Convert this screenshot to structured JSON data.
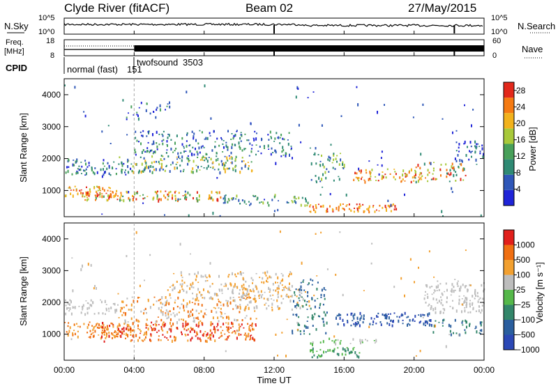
{
  "header": {
    "station": "Clyde River (fitACF)",
    "beam": "Beam 02",
    "date": "27/May/2015"
  },
  "noise_panel": {
    "left_label": "N.Sky",
    "right_label": "N.Search",
    "left_ticks": [
      "10^5",
      "10^0"
    ],
    "right_ticks": [
      "10^5",
      "10^0"
    ]
  },
  "freq_panel": {
    "left_label_1": "Freq.",
    "left_label_2": "[MHz]",
    "right_label": "Nave",
    "left_ticks": [
      "18",
      "8"
    ],
    "right_ticks": [
      "60",
      "0"
    ]
  },
  "cpid": {
    "label": "CPID",
    "segments": [
      {
        "name": "normal (fast)",
        "id": "151",
        "start_hour": 0
      },
      {
        "name": "twofsound",
        "id": "3503",
        "start_hour": 4
      }
    ]
  },
  "colors": {
    "power": [
      "#1f24d8",
      "#2f57b8",
      "#2f8a74",
      "#48a05a",
      "#a8c93a",
      "#f2b21c",
      "#f57a12",
      "#e2281b"
    ],
    "velocity": [
      "#2b48b5",
      "#2a5e9e",
      "#33866a",
      "#55b84a",
      "#bdbdbd",
      "#f2a030",
      "#f06f12",
      "#e11f1b"
    ]
  },
  "chart_data": [
    {
      "type": "heatmap",
      "name": "power",
      "ylabel": "Slant Range [km]",
      "x_range_hours": [
        0,
        24
      ],
      "ylim": [
        180,
        4500
      ],
      "yticks": [
        1000,
        2000,
        3000,
        4000
      ],
      "colorbar": {
        "title": "Power [dB]",
        "ticks": [
          "28",
          "24",
          "20",
          "16",
          "12",
          "8",
          "4"
        ],
        "range": [
          0,
          30
        ]
      }
    },
    {
      "type": "heatmap",
      "name": "velocity",
      "ylabel": "Slant Range [km]",
      "xlabel": "Time UT",
      "x_range_hours": [
        0,
        24
      ],
      "ylim": [
        180,
        4500
      ],
      "yticks": [
        1000,
        2000,
        3000,
        4000
      ],
      "xticks": [
        "00:00",
        "04:00",
        "08:00",
        "12:00",
        "16:00",
        "20:00",
        "00:00"
      ],
      "colorbar": {
        "title": "Velocity [m s⁻¹]",
        "ticks": [
          "1000",
          "500",
          "100",
          "25",
          "−25",
          "−100",
          "−500",
          "−1000"
        ]
      }
    }
  ]
}
